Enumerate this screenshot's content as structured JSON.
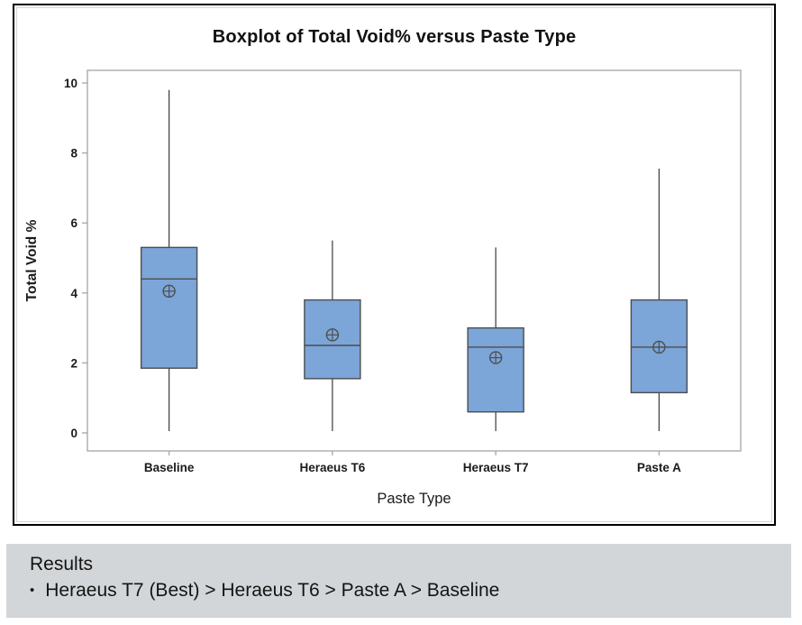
{
  "chart_data": {
    "type": "boxplot",
    "title": "Boxplot of Total Void% versus Paste Type",
    "xlabel": "Paste Type",
    "ylabel": "Total Void %",
    "yticks": [
      0,
      2,
      4,
      6,
      8,
      10
    ],
    "ylim": [
      -0.5,
      10.4
    ],
    "grid": "off",
    "categories": [
      "Baseline",
      "Heraeus T6",
      "Heraeus T7",
      "Paste A"
    ],
    "boxes": [
      {
        "category": "Baseline",
        "whisker_low": 0.05,
        "q1": 1.85,
        "median": 4.4,
        "q3": 5.3,
        "whisker_high": 9.8,
        "mean": 4.05
      },
      {
        "category": "Heraeus T6",
        "whisker_low": 0.05,
        "q1": 1.55,
        "median": 2.5,
        "q3": 3.8,
        "whisker_high": 5.5,
        "mean": 2.8
      },
      {
        "category": "Heraeus T7",
        "whisker_low": 0.05,
        "q1": 0.6,
        "median": 2.45,
        "q3": 3.0,
        "whisker_high": 5.3,
        "mean": 2.15
      },
      {
        "category": "Paste A",
        "whisker_low": 0.05,
        "q1": 1.15,
        "median": 2.45,
        "q3": 3.8,
        "whisker_high": 7.55,
        "mean": 2.45
      }
    ]
  },
  "results": {
    "heading": "Results",
    "bullet_marker": "•",
    "bullet_text": "Heraeus T7 (Best) > Heraeus T6 > Paste A > Baseline"
  },
  "colors": {
    "box_fill": "#7CA5D8",
    "box_stroke": "#4d4d4d",
    "whisker": "#3a3a3a",
    "median": "#4d4d4d",
    "mean_marker": "#4f4f4f",
    "plot_border": "#ababab",
    "axis_text": "#1a1a1a",
    "chart_border": "#000000",
    "results_bg": "#d3d6d8"
  }
}
